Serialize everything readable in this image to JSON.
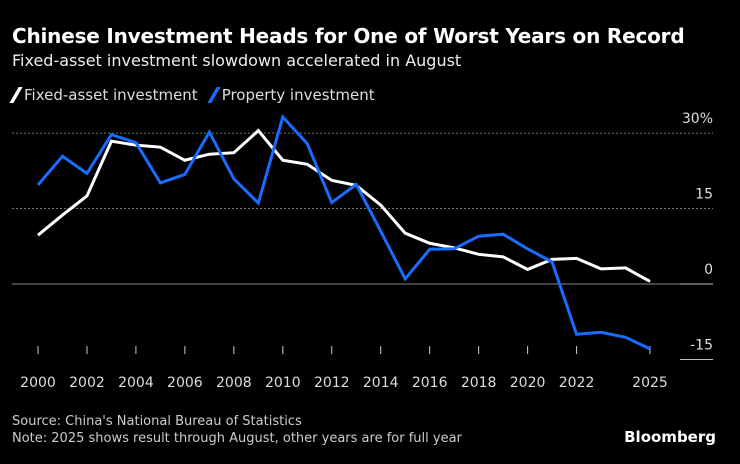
{
  "chart_data": {
    "type": "line",
    "title": "Chinese Investment Heads for One of Worst Years on Record",
    "subtitle": "Fixed-asset investment slowdown accelerated in August",
    "x": [
      2000,
      2001,
      2002,
      2003,
      2004,
      2005,
      2006,
      2007,
      2008,
      2009,
      2010,
      2011,
      2012,
      2013,
      2014,
      2015,
      2016,
      2017,
      2018,
      2019,
      2020,
      2021,
      2022,
      2023,
      2024,
      2025
    ],
    "x_tick_labels": [
      "2000",
      "2002",
      "2004",
      "2006",
      "2008",
      "2010",
      "2012",
      "2014",
      "2016",
      "2018",
      "2020",
      "2022",
      "2025"
    ],
    "y_tick_labels": [
      "30%",
      "15",
      "0",
      "-15"
    ],
    "ylim": [
      -15,
      30
    ],
    "y_axis_position": "right",
    "grid": true,
    "legend_placement": "top-left",
    "series": [
      {
        "name": "Fixed-asset investment",
        "color": "#ffffff",
        "values": [
          9.7,
          13.7,
          17.5,
          28.4,
          27.6,
          27.2,
          24.6,
          25.8,
          26.1,
          30.5,
          24.6,
          23.8,
          20.6,
          19.6,
          15.7,
          10.1,
          8.1,
          7.2,
          5.9,
          5.4,
          2.9,
          4.9,
          5.1,
          3.0,
          3.2,
          0.5
        ]
      },
      {
        "name": "Property investment",
        "color": "#1a6cff",
        "values": [
          19.7,
          25.4,
          22.0,
          29.7,
          28.1,
          20.1,
          21.8,
          30.2,
          20.9,
          16.1,
          33.2,
          27.9,
          16.2,
          19.8,
          10.5,
          1.0,
          6.9,
          7.0,
          9.5,
          9.9,
          7.0,
          4.4,
          -10.0,
          -9.6,
          -10.6,
          -12.9
        ]
      }
    ]
  },
  "footer": {
    "source": "Source: China's National Bureau of Statistics",
    "note": "Note: 2025 shows result through August, other years are for full year",
    "logo": "Bloomberg"
  }
}
